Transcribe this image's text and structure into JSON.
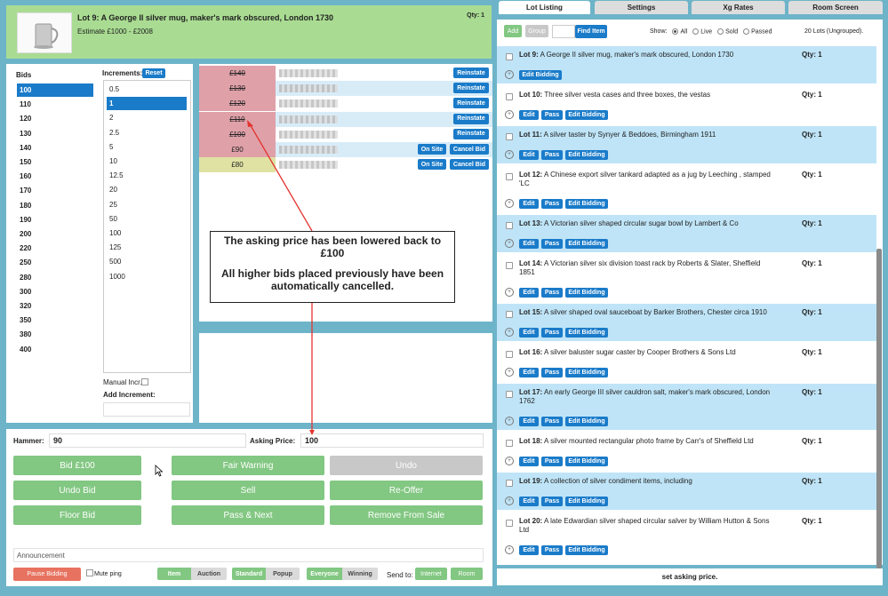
{
  "lot_header": {
    "title": "Lot 9: A George II silver mug, maker's mark obscured, London 1730",
    "estimate": "Estimate £1000 - £2008",
    "qty": "Qty: 1"
  },
  "bids_panel": {
    "bids_label": "Bids",
    "bids": [
      "100",
      "110",
      "120",
      "130",
      "140",
      "150",
      "160",
      "170",
      "180",
      "190",
      "200",
      "220",
      "250",
      "280",
      "300",
      "320",
      "350",
      "380",
      "400"
    ],
    "selected_bid": "100",
    "increments_label": "Increments:",
    "reset_label": "Reset",
    "increments": [
      "0.5",
      "1",
      "2",
      "2.5",
      "5",
      "10",
      "12.5",
      "20",
      "25",
      "50",
      "100",
      "125",
      "500",
      "1000"
    ],
    "selected_increment": "1",
    "manual_incr_label": "Manual Incr.",
    "add_increment_label": "Add Increment:"
  },
  "bid_history": [
    {
      "amount": "£140",
      "action": "Reinstate",
      "state": "cancelled"
    },
    {
      "amount": "£130",
      "action": "Reinstate",
      "state": "cancelled"
    },
    {
      "amount": "£120",
      "action": "Reinstate",
      "state": "cancelled"
    },
    {
      "amount": "£110",
      "action": "Reinstate",
      "state": "cancelled"
    },
    {
      "amount": "£100",
      "action": "Reinstate",
      "state": "cancelled"
    },
    {
      "amount": "£90",
      "action": "On Site",
      "action2": "Cancel Bid",
      "state": "active"
    },
    {
      "amount": "£80",
      "action": "On Site",
      "action2": "Cancel Bid",
      "state": "winning"
    }
  ],
  "callout": {
    "line1": "The asking price has been lowered back to £100",
    "line2": "All higher bids placed previously have been automatically cancelled."
  },
  "controls": {
    "hammer_label": "Hammer:",
    "hammer_value": "90",
    "asking_label": "Asking Price:",
    "asking_value": "100",
    "buttons": {
      "bid": "Bid £100",
      "fair_warning": "Fair Warning",
      "undo": "Undo",
      "undo_bid": "Undo Bid",
      "sell": "Sell",
      "reoffer": "Re-Offer",
      "floor_bid": "Floor Bid",
      "pass_next": "Pass & Next",
      "remove": "Remove From Sale"
    },
    "announcement_label": "Announcement",
    "pause_label": "Pause Bidding",
    "mute_label": "Mute ping",
    "item_label": "Item",
    "auction_label": "Auction",
    "standard_label": "Standard",
    "popup_label": "Popup",
    "everyone_label": "Everyone",
    "winning_label": "Winning",
    "send_to_label": "Send to:",
    "internet_label": "Internet",
    "room_label": "Room"
  },
  "tabs": [
    "Lot Listing",
    "Settings",
    "Xg Rates",
    "Room Screen"
  ],
  "listing_toolbar": {
    "add": "Add",
    "group": "Group",
    "find_item": "Find Item",
    "show_label": "Show:",
    "show_options": [
      "All",
      "Live",
      "Sold",
      "Passed"
    ],
    "count": "20 Lots (Ungrouped)."
  },
  "lots": [
    {
      "num": "Lot 9:",
      "desc": "A George II silver mug, maker's mark obscured, London 1730",
      "qty": "Qty: 1"
    },
    {
      "num": "Lot 10:",
      "desc": "Three silver vesta cases and three boxes, the vestas",
      "qty": "Qty: 1"
    },
    {
      "num": "Lot 11:",
      "desc": "A silver taster by Synyer & Beddoes, Birmingham 1911",
      "qty": "Qty: 1"
    },
    {
      "num": "Lot 12:",
      "desc": "A Chinese export silver tankard adapted as a jug by Leeching , stamped 'LC",
      "qty": "Qty: 1"
    },
    {
      "num": "Lot 13:",
      "desc": "A Victorian silver shaped circular sugar bowl by Lambert & Co",
      "qty": "Qty: 1"
    },
    {
      "num": "Lot 14:",
      "desc": "A Victorian silver six division toast rack by Roberts & Slater, Sheffield 1851",
      "qty": "Qty: 1"
    },
    {
      "num": "Lot 15:",
      "desc": "A silver shaped oval sauceboat by Barker Brothers, Chester circa 1910",
      "qty": "Qty: 1"
    },
    {
      "num": "Lot 16:",
      "desc": "A silver baluster sugar caster by Cooper Brothers & Sons Ltd",
      "qty": "Qty: 1"
    },
    {
      "num": "Lot 17:",
      "desc": "An early George III silver cauldron salt, maker's mark obscured, London 1762",
      "qty": "Qty: 1"
    },
    {
      "num": "Lot 18:",
      "desc": "A silver mounted rectangular photo frame by Carr's of Sheffield Ltd",
      "qty": "Qty: 1"
    },
    {
      "num": "Lot 19:",
      "desc": "A collection of silver condiment items, including",
      "qty": "Qty: 1"
    },
    {
      "num": "Lot 20:",
      "desc": "A late Edwardian silver shaped circular salver by William Hutton & Sons Ltd",
      "qty": "Qty: 1"
    }
  ],
  "lot_buttons": {
    "edit": "Edit",
    "pass": "Pass",
    "edit_bidding": "Edit Bidding"
  },
  "status_bar": "set asking price."
}
